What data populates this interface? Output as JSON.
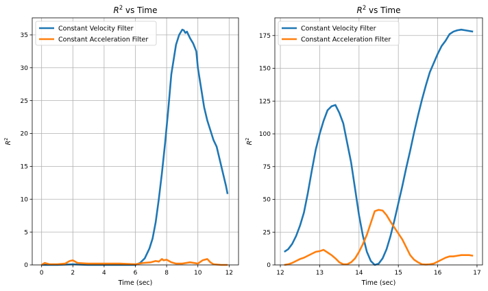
{
  "chart_data": [
    {
      "type": "line",
      "title": "R² vs Time",
      "xlabel": "Time (sec)",
      "ylabel": "R²",
      "xlim": [
        -0.6,
        12.6
      ],
      "ylim": [
        0,
        37.6
      ],
      "xticks": [
        0,
        2,
        4,
        6,
        8,
        10,
        12
      ],
      "yticks": [
        0,
        5,
        10,
        15,
        20,
        25,
        30,
        35
      ],
      "grid": true,
      "legend_position": "top-left",
      "series": [
        {
          "name": "Constant Velocity Filter",
          "color": "#1f77b4",
          "x": [
            0.0,
            1.0,
            2.0,
            3.0,
            4.0,
            5.0,
            6.0,
            6.3,
            6.6,
            6.9,
            7.1,
            7.3,
            7.5,
            7.7,
            7.9,
            8.1,
            8.3,
            8.5,
            8.6,
            8.8,
            9.0,
            9.1,
            9.2,
            9.3,
            9.4,
            9.5,
            9.7,
            9.9,
            10.0,
            10.2,
            10.4,
            10.6,
            10.8,
            11.0,
            11.2,
            11.4,
            11.6,
            11.8,
            11.9
          ],
          "y": [
            0.0,
            0.0,
            0.1,
            0.0,
            0.0,
            0.0,
            0.0,
            0.3,
            1.0,
            2.5,
            4.0,
            6.5,
            10.0,
            14.0,
            18.5,
            23.5,
            29.0,
            32.0,
            33.5,
            35.0,
            35.8,
            35.7,
            35.3,
            35.5,
            35.0,
            34.5,
            33.7,
            32.5,
            30.0,
            27.0,
            24.0,
            22.0,
            20.5,
            19.0,
            18.0,
            16.0,
            14.0,
            12.0,
            10.8
          ]
        },
        {
          "name": "Constant Acceleration Filter",
          "color": "#ff7f0e",
          "x": [
            0.0,
            0.2,
            0.5,
            1.0,
            1.5,
            1.8,
            2.0,
            2.3,
            3.0,
            4.0,
            4.3,
            5.0,
            6.0,
            6.5,
            7.0,
            7.3,
            7.5,
            7.7,
            7.8,
            8.0,
            8.3,
            8.6,
            9.0,
            9.5,
            10.0,
            10.3,
            10.6,
            10.8,
            11.0,
            11.5,
            11.9
          ],
          "y": [
            0.0,
            0.3,
            0.1,
            0.1,
            0.2,
            0.6,
            0.7,
            0.3,
            0.2,
            0.2,
            0.2,
            0.2,
            0.1,
            0.3,
            0.4,
            0.6,
            0.5,
            0.9,
            0.7,
            0.8,
            0.4,
            0.2,
            0.2,
            0.4,
            0.2,
            0.7,
            0.9,
            0.4,
            0.1,
            0.0,
            0.0
          ]
        }
      ]
    },
    {
      "type": "line",
      "title": "R² vs Time",
      "xlabel": "Time (sec)",
      "ylabel": "R²",
      "xlim": [
        11.86,
        17.14
      ],
      "ylim": [
        0,
        188.5
      ],
      "xticks": [
        12,
        13,
        14,
        15,
        16,
        17
      ],
      "yticks": [
        0,
        25,
        50,
        75,
        100,
        125,
        150,
        175
      ],
      "grid": true,
      "legend_position": "top-left",
      "series": [
        {
          "name": "Constant Velocity Filter",
          "color": "#1f77b4",
          "x": [
            12.1,
            12.2,
            12.3,
            12.4,
            12.5,
            12.6,
            12.7,
            12.8,
            12.9,
            13.0,
            13.1,
            13.2,
            13.3,
            13.4,
            13.5,
            13.6,
            13.7,
            13.8,
            13.9,
            14.0,
            14.1,
            14.2,
            14.3,
            14.4,
            14.5,
            14.6,
            14.7,
            14.8,
            14.9,
            15.0,
            15.1,
            15.2,
            15.3,
            15.4,
            15.5,
            15.6,
            15.7,
            15.8,
            15.9,
            16.0,
            16.1,
            16.2,
            16.3,
            16.4,
            16.5,
            16.6,
            16.7,
            16.8,
            16.9
          ],
          "y": [
            10,
            12,
            16,
            22,
            30,
            40,
            55,
            72,
            88,
            100,
            110,
            118,
            121,
            122,
            116,
            108,
            93,
            78,
            58,
            38,
            22,
            10,
            3,
            0,
            1,
            5,
            12,
            22,
            34,
            47,
            60,
            74,
            87,
            101,
            114,
            126,
            137,
            147,
            154,
            161,
            167,
            171,
            176,
            178,
            179,
            179.5,
            179,
            178.5,
            178
          ]
        },
        {
          "name": "Constant Acceleration Filter",
          "color": "#ff7f0e",
          "x": [
            12.1,
            12.2,
            12.3,
            12.4,
            12.5,
            12.6,
            12.7,
            12.8,
            12.9,
            13.0,
            13.1,
            13.2,
            13.3,
            13.4,
            13.5,
            13.6,
            13.7,
            13.8,
            13.9,
            14.0,
            14.1,
            14.2,
            14.3,
            14.4,
            14.5,
            14.6,
            14.7,
            14.8,
            14.9,
            15.0,
            15.1,
            15.2,
            15.3,
            15.4,
            15.5,
            15.6,
            15.7,
            15.8,
            15.9,
            16.0,
            16.1,
            16.2,
            16.3,
            16.4,
            16.5,
            16.6,
            16.7,
            16.8,
            16.9
          ],
          "y": [
            0,
            0.5,
            1.5,
            3,
            4.5,
            5.5,
            7,
            8.5,
            10,
            10.5,
            11.5,
            9.5,
            7.5,
            5,
            2,
            0.5,
            0.5,
            2,
            5,
            10,
            16,
            23,
            32,
            41,
            42,
            41.5,
            38,
            33,
            28.5,
            24,
            19.5,
            13.5,
            7.5,
            4,
            2,
            0.5,
            0.3,
            0.5,
            1,
            2.5,
            4,
            5.5,
            6.5,
            6.5,
            7,
            7.5,
            7.5,
            7.5,
            7
          ]
        }
      ]
    }
  ]
}
